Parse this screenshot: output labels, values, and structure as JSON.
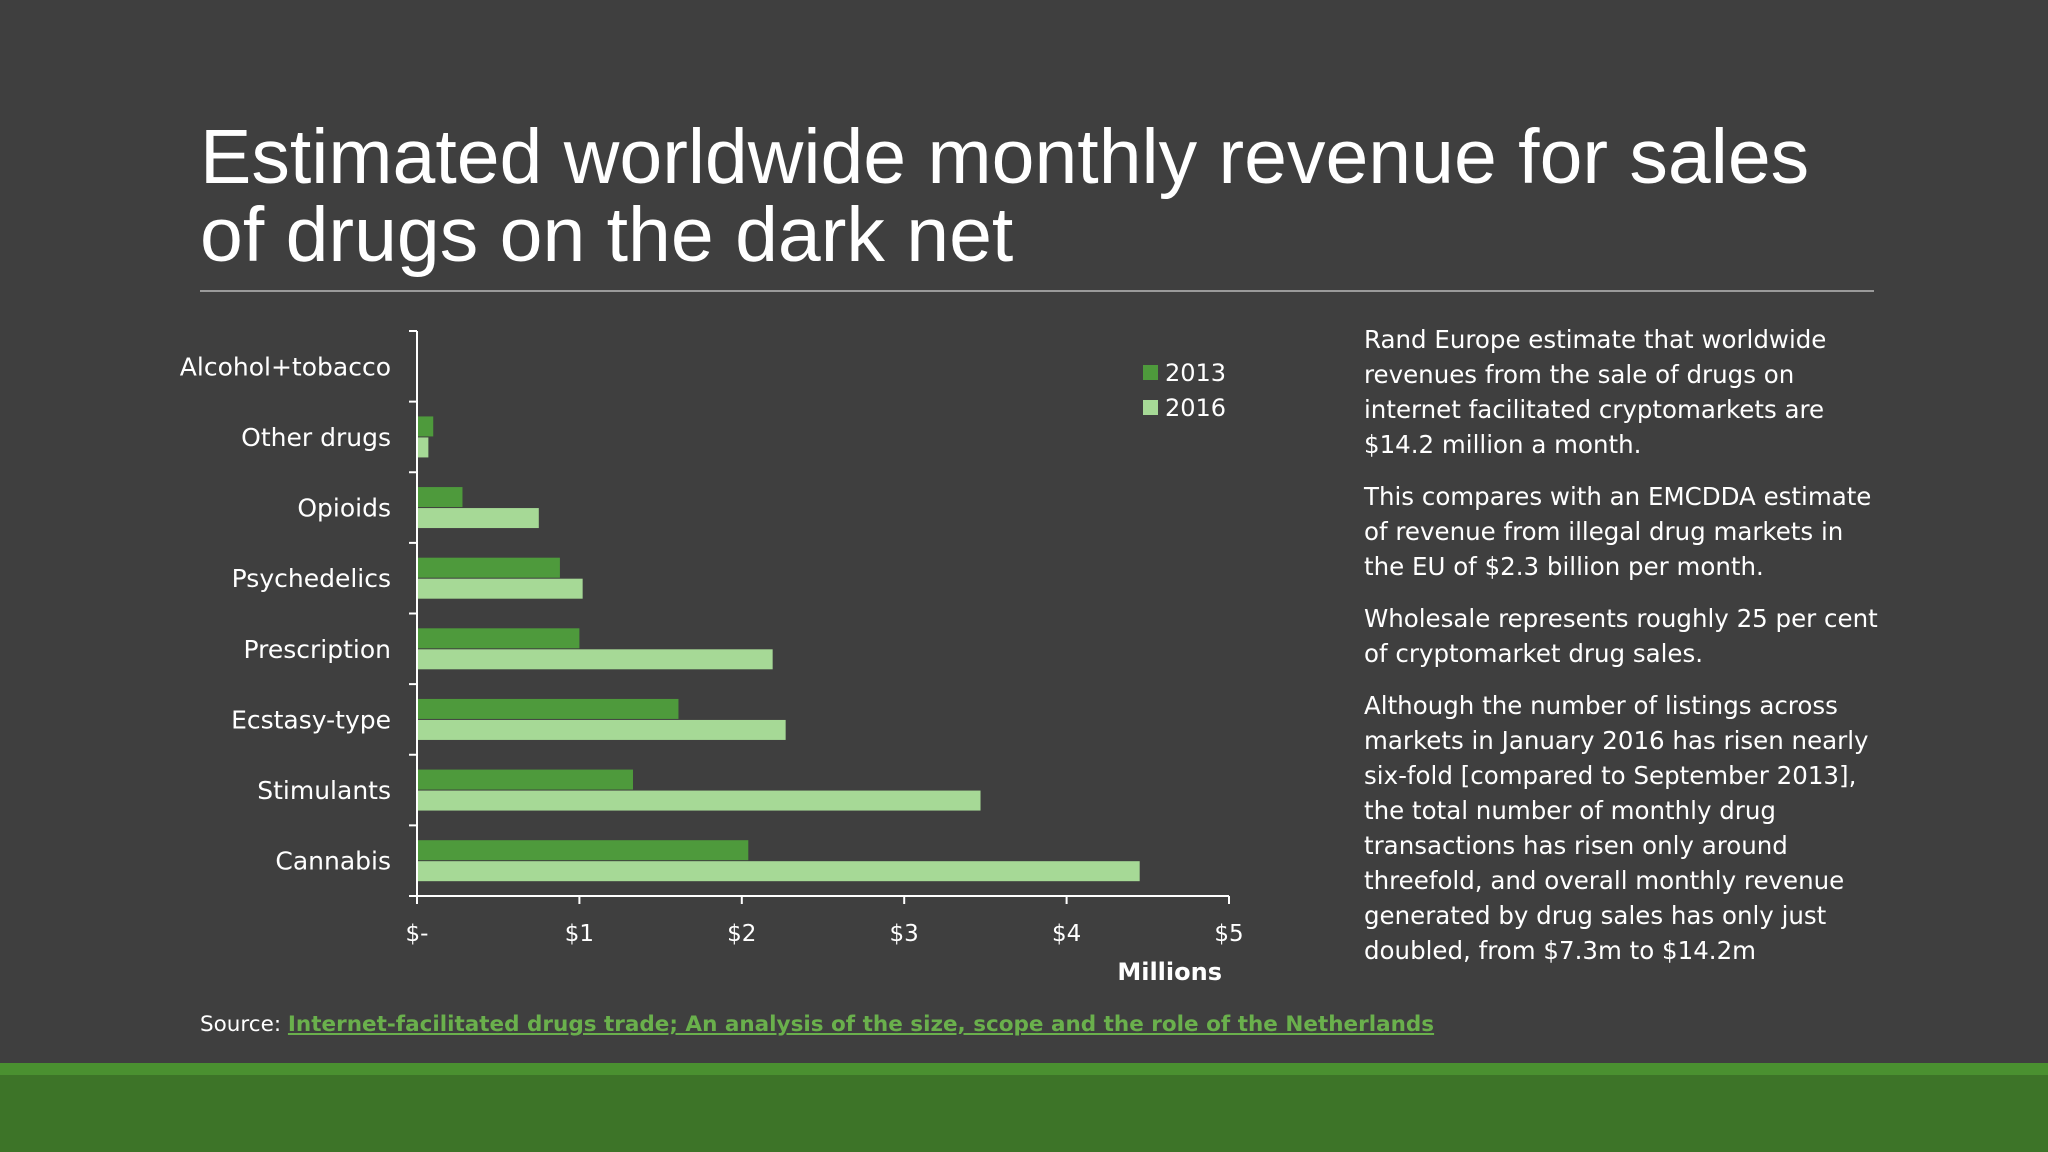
{
  "slide": {
    "title": "Estimated worldwide monthly revenue for sales of drugs on the dark net",
    "paragraphs": [
      "Rand Europe estimate that worldwide revenues from the sale of drugs on internet facilitated cryptomarkets are $14.2 million a month.",
      "This compares with an EMCDDA estimate of revenue from illegal drug markets in the EU of $2.3 billion per month.",
      "Wholesale represents roughly 25 per cent of cryptomarket drug sales.",
      "Although the number of listings across markets in January 2016 has risen nearly six-fold [compared to September 2013], the total number of monthly drug transactions has risen only around threefold, and overall monthly revenue generated by drug sales has only just doubled, from $7.3m to $14.2m"
    ],
    "source_label": "Source: ",
    "source_link_text": "Internet-facilitated drugs trade; An analysis of the size, scope and the role of the Netherlands"
  },
  "colors": {
    "background": "#3f3f3f",
    "series_2013": "#4e9a3c",
    "series_2016": "#a6d996",
    "link": "#6ab04c",
    "footer": "#3d7428"
  },
  "chart_data": {
    "type": "bar",
    "orientation": "horizontal",
    "categories": [
      "Alcohol+tobacco",
      "Other drugs",
      "Opioids",
      "Psychedelics",
      "Prescription",
      "Ecstasy-type",
      "Stimulants",
      "Cannabis"
    ],
    "series": [
      {
        "name": "2013",
        "values": [
          0,
          0.1,
          0.28,
          0.88,
          1.0,
          1.61,
          1.33,
          2.04
        ]
      },
      {
        "name": "2016",
        "values": [
          0,
          0.07,
          0.75,
          1.02,
          2.19,
          2.27,
          3.47,
          4.45
        ]
      }
    ],
    "xlabel": "Millions",
    "ylabel": "",
    "xlim": [
      0,
      5
    ],
    "x_ticks": [
      0,
      1,
      2,
      3,
      4,
      5
    ],
    "x_tick_labels": [
      "$-",
      "$1",
      "$2",
      "$3",
      "$4",
      "$5"
    ],
    "legend": [
      "2013",
      "2016"
    ],
    "legend_position": "top-right",
    "grid": false
  }
}
